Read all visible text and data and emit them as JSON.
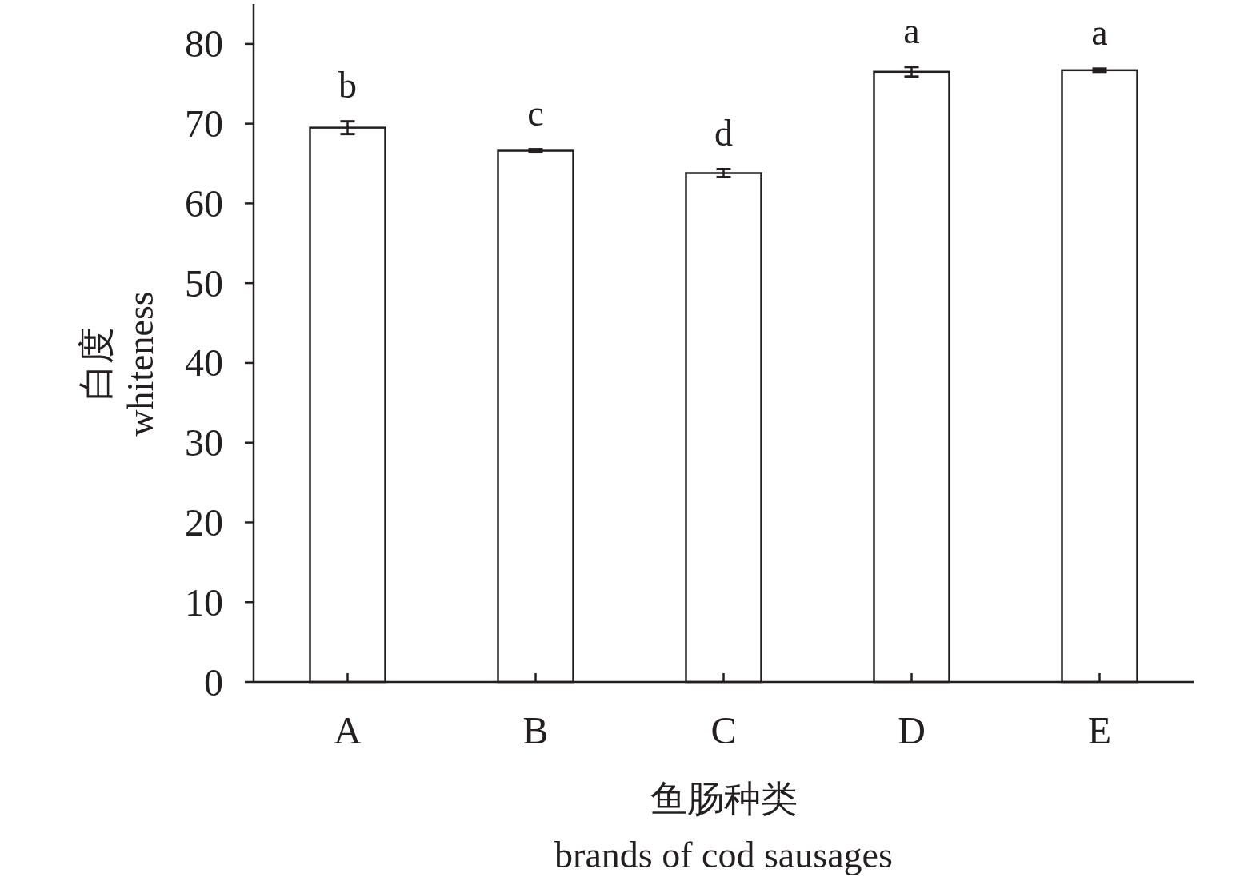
{
  "chart_data": {
    "type": "bar",
    "xlabel": "鱼肠种类\nbrands of cod sausages",
    "ylabel": "白度\nwhiteness",
    "categories": [
      "A",
      "B",
      "C",
      "D",
      "E"
    ],
    "values": [
      69.5,
      66.6,
      63.8,
      76.5,
      76.7
    ],
    "errors": [
      0.8,
      0.2,
      0.5,
      0.6,
      0.2
    ],
    "color": "#ffffff",
    "ylim": [
      0,
      85
    ],
    "yticks": [
      0,
      10,
      20,
      30,
      40,
      50,
      60,
      70,
      80
    ],
    "grid": false,
    "annotations": [
      {
        "text": "b",
        "x": "A",
        "y": 70.3
      },
      {
        "text": "c",
        "x": "B",
        "y": 66.8
      },
      {
        "text": "d",
        "x": "C",
        "y": 64.3
      },
      {
        "text": "a",
        "x": "D",
        "y": 77.1
      },
      {
        "text": "a",
        "x": "E",
        "y": 76.9
      }
    ]
  }
}
